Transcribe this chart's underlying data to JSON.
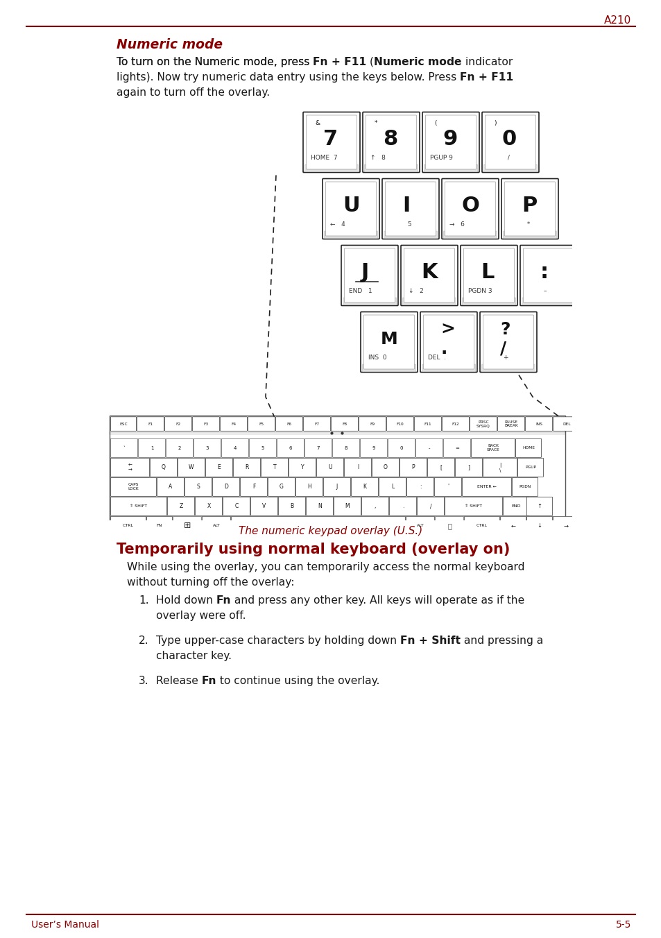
{
  "page_color": "#ffffff",
  "red_color": "#8B0000",
  "text_color": "#1a1a1a",
  "header_text": "A210",
  "footer_left": "User’s Manual",
  "footer_right": "5-5",
  "section1_title": "Numeric mode",
  "para1_line1_normal1": "To turn on the Numeric mode, press ",
  "para1_line1_bold1": "Fn + F11",
  "para1_line1_normal2": " (",
  "para1_line1_bold2": "Numeric mode",
  "para1_line1_normal3": " indicator",
  "para1_line2_normal1": "lights). Now try numeric data entry using the keys below. Press ",
  "para1_line2_bold1": "Fn + F11",
  "para1_line3": "again to turn off the overlay.",
  "caption_text": "The numeric keypad overlay (U.S.)",
  "section2_title": "Temporarily using normal keyboard (overlay on)",
  "intro_line1": "While using the overlay, you can temporarily access the normal keyboard",
  "intro_line2": "without turning off the overlay:",
  "item1_num": "1.",
  "item1_line1_normal1": "Hold down ",
  "item1_line1_bold1": "Fn",
  "item1_line1_normal2": " and press any other key. All keys will operate as if the",
  "item1_line2": "overlay were off.",
  "item2_num": "2.",
  "item2_line1_normal1": "Type upper-case characters by holding down ",
  "item2_line1_bold1": "Fn + Shift",
  "item2_line1_normal2": " and pressing a",
  "item2_line2": "character key.",
  "item3_num": "3.",
  "item3_line1_normal1": "Release ",
  "item3_line1_bold1": "Fn",
  "item3_line1_normal2": " to continue using the overlay."
}
